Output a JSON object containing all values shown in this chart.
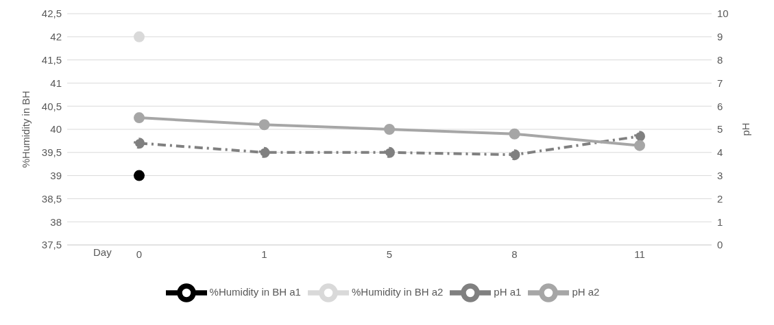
{
  "chart_data": {
    "type": "line",
    "xlabel": "Day",
    "ylabel": "%Humidity in BH",
    "y2label": "pH",
    "categories": [
      "0",
      "1",
      "5",
      "8",
      "11"
    ],
    "series": [
      {
        "name": "%Humidity in BH a1",
        "color": "#000000",
        "values": [
          39,
          null,
          null,
          null,
          null
        ]
      },
      {
        "name": "%Humidity in BH a2",
        "color": "#d9d9d9",
        "values": [
          42,
          null,
          null,
          null,
          null
        ]
      },
      {
        "name": "pH a1",
        "color": "#808080",
        "axis": "y2",
        "line_style": "dashed",
        "values": [
          4.4,
          4.0,
          4.0,
          3.9,
          4.7
        ]
      },
      {
        "name": "pH a2",
        "color": "#a6a6a6",
        "axis": "y2",
        "values": [
          5.5,
          5.2,
          5.0,
          4.8,
          4.3
        ]
      }
    ],
    "ylim": [
      37.5,
      42.5
    ],
    "yticks": [
      {
        "value": 37.5,
        "label": "37,5"
      },
      38,
      {
        "value": 38.5,
        "label": "38,5"
      },
      39,
      {
        "value": 39.5,
        "label": "39,5"
      },
      40,
      {
        "value": 40.5,
        "label": "40,5"
      },
      41,
      {
        "value": 41.5,
        "label": "41,5"
      },
      42,
      {
        "value": 42.5,
        "label": "42,5"
      }
    ],
    "y2lim": [
      0,
      10
    ],
    "y2ticks": [
      0,
      1,
      2,
      3,
      4,
      5,
      6,
      7,
      8,
      9,
      10
    ],
    "grid": "y",
    "legend": "bottom",
    "marker": "circle"
  }
}
